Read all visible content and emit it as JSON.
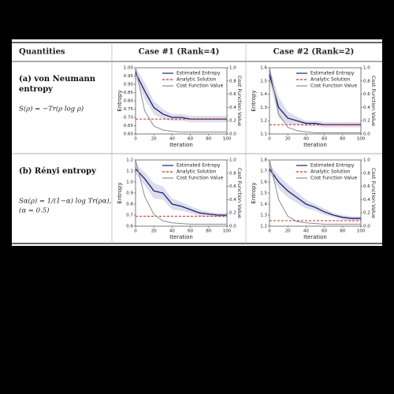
{
  "table": {
    "header": [
      "Quantities",
      "Case #1 (Rank=4)",
      "Case #2 (Rank=2)"
    ],
    "rows": [
      {
        "title": "(a) von Neumann entropy",
        "formula": [
          "S(ρ) = −Tr(ρ log ρ)"
        ],
        "charts": [
          {
            "type": "line",
            "xlabel": "Iteration",
            "ylabel": "Entropy",
            "y2label": "Cost Function Value",
            "legend": "upper right",
            "x": [
              0,
              10,
              20,
              30,
              40,
              50,
              60,
              70,
              80,
              90,
              100
            ],
            "xlim": [
              0,
              100
            ],
            "xticks": [
              0,
              20,
              40,
              60,
              80,
              100
            ],
            "ylim": [
              0.6,
              1.0
            ],
            "yticks": [
              {
                "value": 1.0,
                "label": "1.00"
              },
              0.95,
              {
                "value": 0.9,
                "label": "0.90"
              },
              0.85,
              {
                "value": 0.8,
                "label": "0.80"
              },
              0.75,
              {
                "value": 0.7,
                "label": "0.70"
              },
              0.65,
              {
                "value": 0.6,
                "label": "0.60"
              }
            ],
            "y2lim": [
              0,
              1.0
            ],
            "y2ticks": [
              {
                "value": 0,
                "label": "0.0"
              },
              0.2,
              0.4,
              0.6,
              0.8,
              {
                "value": 1,
                "label": "1.0"
              }
            ],
            "series": [
              {
                "name": "Estimated Entropy",
                "color": "#1c1f78",
                "values": [
                  0.97,
                  0.86,
                  0.76,
                  0.72,
                  0.7,
                  0.7,
                  0.69,
                  0.69,
                  0.69,
                  0.69,
                  0.69
                ],
                "std": [
                  0.03,
                  0.05,
                  0.04,
                  0.03,
                  0.02,
                  0.02,
                  0.02,
                  0.02,
                  0.02,
                  0.02,
                  0.02
                ]
              },
              {
                "name": "Analytic Solution",
                "color": "#d62728",
                "dashed": true,
                "values": [
                  0.69,
                  0.69,
                  0.69,
                  0.69,
                  0.69,
                  0.69,
                  0.69,
                  0.69,
                  0.69,
                  0.69,
                  0.69
                ]
              },
              {
                "name": "Cost Function Value",
                "color": "#8c8c8c",
                "axis": "y2",
                "values": [
                  1.0,
                  0.35,
                  0.12,
                  0.06,
                  0.04,
                  0.03,
                  0.03,
                  0.03,
                  0.03,
                  0.03,
                  0.03
                ]
              }
            ]
          },
          {
            "type": "line",
            "xlabel": "Iteration",
            "ylabel": "Entropy",
            "y2label": "Cost Function Value",
            "legend": "upper right",
            "x": [
              0,
              10,
              20,
              30,
              40,
              50,
              60,
              70,
              80,
              90,
              100
            ],
            "xlim": [
              0,
              100
            ],
            "xticks": [
              0,
              20,
              40,
              60,
              80,
              100
            ],
            "ylim": [
              1.1,
              1.6
            ],
            "yticks": [
              1.6,
              1.5,
              1.4,
              1.3,
              1.2,
              1.1
            ],
            "y2lim": [
              0,
              1.0
            ],
            "y2ticks": [
              {
                "value": 0,
                "label": "0.0"
              },
              0.2,
              0.4,
              0.6,
              0.8,
              {
                "value": 1,
                "label": "1.0"
              }
            ],
            "series": [
              {
                "name": "Estimated Entropy",
                "color": "#1c1f78",
                "values": [
                  1.55,
                  1.3,
                  1.22,
                  1.2,
                  1.18,
                  1.18,
                  1.17,
                  1.17,
                  1.17,
                  1.17,
                  1.17
                ],
                "std": [
                  0.05,
                  0.08,
                  0.05,
                  0.03,
                  0.02,
                  0.02,
                  0.02,
                  0.02,
                  0.02,
                  0.02,
                  0.02
                ]
              },
              {
                "name": "Analytic Solution",
                "color": "#d62728",
                "dashed": true,
                "values": [
                  1.17,
                  1.17,
                  1.17,
                  1.17,
                  1.17,
                  1.17,
                  1.17,
                  1.17,
                  1.17,
                  1.17,
                  1.17
                ]
              },
              {
                "name": "Cost Function Value",
                "color": "#8c8c8c",
                "axis": "y2",
                "values": [
                  1.0,
                  0.3,
                  0.1,
                  0.05,
                  0.03,
                  0.02,
                  0.02,
                  0.02,
                  0.02,
                  0.02,
                  0.02
                ]
              }
            ]
          }
        ]
      },
      {
        "title": "(b) Rényi entropy",
        "formula": [
          "Sα(ρ) = 1/(1−α) log Tr(ρα),",
          "(α = 0.5)"
        ],
        "charts": [
          {
            "type": "line",
            "xlabel": "Iteration",
            "ylabel": "Entropy",
            "y2label": "Cost Function Value",
            "legend": "upper right",
            "x": [
              0,
              10,
              20,
              30,
              40,
              50,
              60,
              70,
              80,
              90,
              100
            ],
            "xlim": [
              0,
              100
            ],
            "xticks": [
              0,
              20,
              40,
              60,
              80,
              100
            ],
            "ylim": [
              0.6,
              1.2
            ],
            "yticks": [
              1.2,
              1.1,
              {
                "value": 1.0,
                "label": "1.0"
              },
              0.9,
              0.8,
              0.7,
              0.6
            ],
            "y2lim": [
              0,
              1.0
            ],
            "y2ticks": [
              {
                "value": 0,
                "label": "0.0"
              },
              0.2,
              0.4,
              0.6,
              0.8,
              {
                "value": 1,
                "label": "1.0"
              }
            ],
            "series": [
              {
                "name": "Estimated Entropy",
                "color": "#1c1f78",
                "values": [
                  1.12,
                  1.03,
                  0.92,
                  0.9,
                  0.8,
                  0.78,
                  0.75,
                  0.72,
                  0.71,
                  0.7,
                  0.7
                ],
                "std": [
                  0.04,
                  0.06,
                  0.07,
                  0.06,
                  0.05,
                  0.04,
                  0.03,
                  0.03,
                  0.02,
                  0.02,
                  0.02
                ]
              },
              {
                "name": "Analytic Solution",
                "color": "#d62728",
                "dashed": true,
                "values": [
                  0.69,
                  0.69,
                  0.69,
                  0.69,
                  0.69,
                  0.69,
                  0.69,
                  0.69,
                  0.69,
                  0.69,
                  0.69
                ]
              },
              {
                "name": "Cost Function Value",
                "color": "#8c8c8c",
                "axis": "y2",
                "values": [
                  1.0,
                  0.45,
                  0.18,
                  0.08,
                  0.05,
                  0.04,
                  0.03,
                  0.03,
                  0.03,
                  0.03,
                  0.03
                ]
              }
            ]
          },
          {
            "type": "line",
            "xlabel": "Iteration",
            "ylabel": "Entropy",
            "y2label": "Cost Function Value",
            "legend": "upper right",
            "x": [
              0,
              10,
              20,
              30,
              40,
              50,
              60,
              70,
              80,
              90,
              100
            ],
            "xlim": [
              0,
              100
            ],
            "xticks": [
              0,
              20,
              40,
              60,
              80,
              100
            ],
            "ylim": [
              1.2,
              1.8
            ],
            "yticks": [
              1.8,
              1.7,
              1.6,
              1.5,
              1.4,
              1.3,
              1.2
            ],
            "y2lim": [
              0,
              1.0
            ],
            "y2ticks": [
              {
                "value": 0,
                "label": "0.0"
              },
              0.2,
              0.4,
              0.6,
              0.8,
              {
                "value": 1,
                "label": "1.0"
              }
            ],
            "series": [
              {
                "name": "Estimated Entropy",
                "color": "#1c1f78",
                "values": [
                  1.72,
                  1.6,
                  1.52,
                  1.46,
                  1.4,
                  1.37,
                  1.33,
                  1.3,
                  1.28,
                  1.27,
                  1.27
                ],
                "std": [
                  0.04,
                  0.06,
                  0.06,
                  0.05,
                  0.04,
                  0.03,
                  0.03,
                  0.02,
                  0.02,
                  0.02,
                  0.02
                ]
              },
              {
                "name": "Analytic Solution",
                "color": "#d62728",
                "dashed": true,
                "values": [
                  1.25,
                  1.25,
                  1.25,
                  1.25,
                  1.25,
                  1.25,
                  1.25,
                  1.25,
                  1.25,
                  1.25,
                  1.25
                ]
              },
              {
                "name": "Cost Function Value",
                "color": "#8c8c8c",
                "axis": "y2",
                "values": [
                  1.0,
                  0.4,
                  0.15,
                  0.07,
                  0.05,
                  0.04,
                  0.03,
                  0.03,
                  0.03,
                  0.03,
                  0.03
                ]
              }
            ]
          }
        ]
      }
    ]
  }
}
